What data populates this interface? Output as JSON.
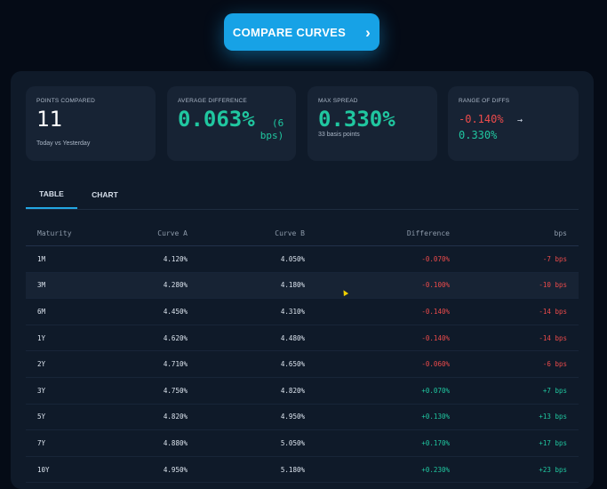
{
  "compare_button": {
    "label": "COMPARE CURVES",
    "icon": "chevron-right-icon"
  },
  "cards": [
    {
      "label": "POINTS COMPARED",
      "value": "11",
      "sub": "Today vs Yesterday"
    },
    {
      "label": "AVERAGE DIFFERENCE",
      "value": "0.063%",
      "value_suffix_line1": "(6",
      "value_suffix_line2": "bps)"
    },
    {
      "label": "MAX SPREAD",
      "value": "0.330%",
      "sub": "33 basis points"
    },
    {
      "label": "RANGE OF DIFFS",
      "min": "-0.140%",
      "arrow": "→",
      "max": "0.330%"
    }
  ],
  "tabs": [
    {
      "label": "TABLE",
      "active": true
    },
    {
      "label": "CHART",
      "active": false
    }
  ],
  "table": {
    "headers": [
      "Maturity",
      "Curve A",
      "Curve B",
      "Difference",
      "bps"
    ],
    "rows": [
      {
        "maturity": "1M",
        "a": "4.120%",
        "b": "4.050%",
        "diff": "-0.070%",
        "bps": "-7 bps",
        "sign": "neg"
      },
      {
        "maturity": "3M",
        "a": "4.280%",
        "b": "4.180%",
        "diff": "-0.100%",
        "bps": "-10 bps",
        "sign": "neg"
      },
      {
        "maturity": "6M",
        "a": "4.450%",
        "b": "4.310%",
        "diff": "-0.140%",
        "bps": "-14 bps",
        "sign": "neg"
      },
      {
        "maturity": "1Y",
        "a": "4.620%",
        "b": "4.480%",
        "diff": "-0.140%",
        "bps": "-14 bps",
        "sign": "neg"
      },
      {
        "maturity": "2Y",
        "a": "4.710%",
        "b": "4.650%",
        "diff": "-0.060%",
        "bps": "-6 bps",
        "sign": "neg"
      },
      {
        "maturity": "3Y",
        "a": "4.750%",
        "b": "4.820%",
        "diff": "+0.070%",
        "bps": "+7 bps",
        "sign": "pos"
      },
      {
        "maturity": "5Y",
        "a": "4.820%",
        "b": "4.950%",
        "diff": "+0.130%",
        "bps": "+13 bps",
        "sign": "pos"
      },
      {
        "maturity": "7Y",
        "a": "4.880%",
        "b": "5.050%",
        "diff": "+0.170%",
        "bps": "+17 bps",
        "sign": "pos"
      },
      {
        "maturity": "10Y",
        "a": "4.950%",
        "b": "5.180%",
        "diff": "+0.230%",
        "bps": "+23 bps",
        "sign": "pos"
      }
    ]
  },
  "colors": {
    "accent": "#17a2e6",
    "positive": "#20c7a0",
    "negative": "#ec4b4b",
    "background": "#050b16",
    "panel": "#0f1a29"
  }
}
